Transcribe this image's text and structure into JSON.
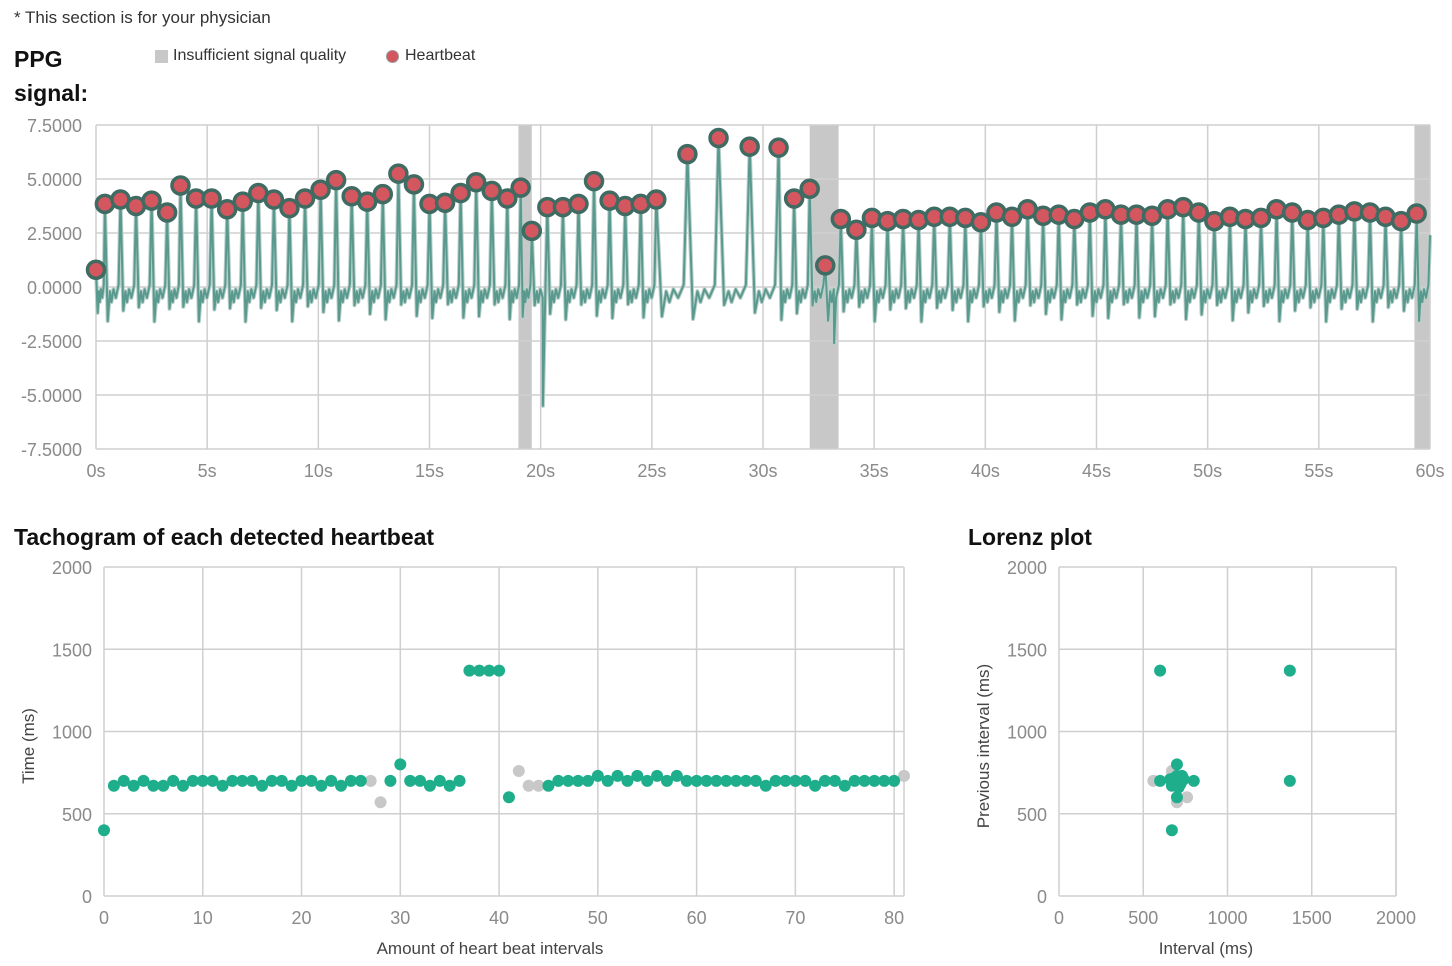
{
  "note": "* This section is for your physician",
  "ppg": {
    "title_line1": "PPG",
    "title_line2": "signal:",
    "legend_insufficient": "Insufficient signal quality",
    "legend_heartbeat": "Heartbeat"
  },
  "tachogram": {
    "title": "Tachogram of each detected heartbeat"
  },
  "lorenz": {
    "title": "Lorenz plot"
  },
  "colors": {
    "signal": "#5a9a8e",
    "beat": "#d4565e",
    "point": "#1fae8c",
    "excluded": "#c8c8c8",
    "grid": "#cfcfcf"
  },
  "chart_data": [
    {
      "type": "line",
      "name": "ppg-signal",
      "xlim": [
        0,
        60
      ],
      "ylim": [
        -7.5,
        7.5
      ],
      "x_ticks": [
        0,
        5,
        10,
        15,
        20,
        25,
        30,
        35,
        40,
        45,
        50,
        55,
        60
      ],
      "x_tick_labels": [
        "0s",
        "5s",
        "10s",
        "15s",
        "20s",
        "25s",
        "30s",
        "35s",
        "40s",
        "45s",
        "50s",
        "55s",
        "60s"
      ],
      "y_ticks": [
        7.5,
        5,
        2.5,
        0,
        -2.5,
        -5,
        -7.5
      ],
      "y_tick_labels": [
        "7.5000",
        "5.0000",
        "2.5000",
        "0.0000",
        "-2.5000",
        "-5.0000",
        "-7.5000"
      ],
      "insufficient_regions": [
        [
          19.0,
          19.6
        ],
        [
          32.1,
          33.4
        ],
        [
          59.3,
          60.0
        ]
      ],
      "dips": [
        [
          20.1,
          -5.5
        ],
        [
          33.2,
          -2.6
        ]
      ],
      "heartbeats": [
        [
          0.0,
          0.8
        ],
        [
          0.4,
          3.85
        ],
        [
          1.1,
          4.05
        ],
        [
          1.8,
          3.75
        ],
        [
          2.5,
          4.0
        ],
        [
          3.2,
          3.45
        ],
        [
          3.8,
          4.7
        ],
        [
          4.5,
          4.1
        ],
        [
          5.2,
          4.1
        ],
        [
          5.9,
          3.6
        ],
        [
          6.6,
          3.95
        ],
        [
          7.3,
          4.35
        ],
        [
          8.0,
          4.05
        ],
        [
          8.7,
          3.65
        ],
        [
          9.4,
          4.1
        ],
        [
          10.1,
          4.5
        ],
        [
          10.8,
          4.95
        ],
        [
          11.5,
          4.2
        ],
        [
          12.2,
          3.95
        ],
        [
          12.9,
          4.3
        ],
        [
          13.6,
          5.25
        ],
        [
          14.3,
          4.75
        ],
        [
          15.0,
          3.85
        ],
        [
          15.7,
          3.9
        ],
        [
          16.4,
          4.35
        ],
        [
          17.1,
          4.85
        ],
        [
          17.8,
          4.45
        ],
        [
          18.5,
          4.1
        ],
        [
          19.1,
          4.6
        ],
        [
          19.6,
          2.6
        ],
        [
          20.3,
          3.7
        ],
        [
          21.0,
          3.7
        ],
        [
          21.7,
          3.85
        ],
        [
          22.4,
          4.9
        ],
        [
          23.1,
          4.0
        ],
        [
          23.8,
          3.75
        ],
        [
          24.5,
          3.85
        ],
        [
          25.2,
          4.05
        ],
        [
          26.6,
          6.15
        ],
        [
          28.0,
          6.9
        ],
        [
          29.4,
          6.5
        ],
        [
          30.7,
          6.45
        ],
        [
          31.4,
          4.1
        ],
        [
          32.1,
          4.55
        ],
        [
          32.8,
          1.0
        ],
        [
          33.5,
          3.15
        ],
        [
          34.2,
          2.65
        ],
        [
          34.9,
          3.2
        ],
        [
          35.6,
          3.05
        ],
        [
          36.3,
          3.15
        ],
        [
          37.0,
          3.1
        ],
        [
          37.7,
          3.25
        ],
        [
          38.4,
          3.25
        ],
        [
          39.1,
          3.2
        ],
        [
          39.8,
          3.0
        ],
        [
          40.5,
          3.45
        ],
        [
          41.2,
          3.25
        ],
        [
          41.9,
          3.6
        ],
        [
          42.6,
          3.3
        ],
        [
          43.3,
          3.35
        ],
        [
          44.0,
          3.15
        ],
        [
          44.7,
          3.45
        ],
        [
          45.4,
          3.6
        ],
        [
          46.1,
          3.35
        ],
        [
          46.8,
          3.35
        ],
        [
          47.5,
          3.3
        ],
        [
          48.2,
          3.6
        ],
        [
          48.9,
          3.7
        ],
        [
          49.6,
          3.45
        ],
        [
          50.3,
          3.05
        ],
        [
          51.0,
          3.25
        ],
        [
          51.7,
          3.15
        ],
        [
          52.4,
          3.2
        ],
        [
          53.1,
          3.6
        ],
        [
          53.8,
          3.45
        ],
        [
          54.5,
          3.1
        ],
        [
          55.2,
          3.2
        ],
        [
          55.9,
          3.35
        ],
        [
          56.6,
          3.5
        ],
        [
          57.3,
          3.45
        ],
        [
          58.0,
          3.25
        ],
        [
          58.7,
          3.05
        ],
        [
          59.4,
          3.4
        ]
      ]
    },
    {
      "type": "scatter",
      "name": "tachogram",
      "title": "Tachogram of each detected heartbeat",
      "xlabel": "Amount of heart beat intervals",
      "ylabel": "Time (ms)",
      "xlim": [
        0,
        81
      ],
      "ylim": [
        0,
        2000
      ],
      "x_ticks": [
        0,
        10,
        20,
        30,
        40,
        50,
        60,
        70,
        80
      ],
      "y_ticks": [
        0,
        500,
        1000,
        1500,
        2000
      ],
      "points": [
        [
          0,
          400
        ],
        [
          1,
          670
        ],
        [
          2,
          700
        ],
        [
          3,
          670
        ],
        [
          4,
          700
        ],
        [
          5,
          670
        ],
        [
          6,
          670
        ],
        [
          7,
          700
        ],
        [
          8,
          670
        ],
        [
          9,
          700
        ],
        [
          10,
          700
        ],
        [
          11,
          700
        ],
        [
          12,
          670
        ],
        [
          13,
          700
        ],
        [
          14,
          700
        ],
        [
          15,
          700
        ],
        [
          16,
          670
        ],
        [
          17,
          700
        ],
        [
          18,
          700
        ],
        [
          19,
          670
        ],
        [
          20,
          700
        ],
        [
          21,
          700
        ],
        [
          22,
          670
        ],
        [
          23,
          700
        ],
        [
          24,
          670
        ],
        [
          25,
          700
        ],
        [
          26,
          700
        ],
        [
          29,
          700
        ],
        [
          30,
          800
        ],
        [
          31,
          700
        ],
        [
          32,
          700
        ],
        [
          33,
          670
        ],
        [
          34,
          700
        ],
        [
          35,
          670
        ],
        [
          36,
          700
        ],
        [
          37,
          1370
        ],
        [
          38,
          1370
        ],
        [
          39,
          1370
        ],
        [
          40,
          1370
        ],
        [
          41,
          600
        ],
        [
          45,
          670
        ],
        [
          46,
          700
        ],
        [
          47,
          700
        ],
        [
          48,
          700
        ],
        [
          49,
          700
        ],
        [
          50,
          730
        ],
        [
          51,
          700
        ],
        [
          52,
          730
        ],
        [
          53,
          700
        ],
        [
          54,
          730
        ],
        [
          55,
          700
        ],
        [
          56,
          730
        ],
        [
          57,
          700
        ],
        [
          58,
          730
        ],
        [
          59,
          700
        ],
        [
          60,
          700
        ],
        [
          61,
          700
        ],
        [
          62,
          700
        ],
        [
          63,
          700
        ],
        [
          64,
          700
        ],
        [
          65,
          700
        ],
        [
          66,
          700
        ],
        [
          67,
          670
        ],
        [
          68,
          700
        ],
        [
          69,
          700
        ],
        [
          70,
          700
        ],
        [
          71,
          700
        ],
        [
          72,
          670
        ],
        [
          73,
          700
        ],
        [
          74,
          700
        ],
        [
          75,
          670
        ],
        [
          76,
          700
        ],
        [
          77,
          700
        ],
        [
          78,
          700
        ],
        [
          79,
          700
        ],
        [
          80,
          700
        ]
      ],
      "excluded_points": [
        [
          27,
          700
        ],
        [
          28,
          570
        ],
        [
          42,
          760
        ],
        [
          43,
          670
        ],
        [
          44,
          670
        ],
        [
          81,
          730
        ]
      ]
    },
    {
      "type": "scatter",
      "name": "lorenz",
      "title": "Lorenz plot",
      "xlabel": "Interval (ms)",
      "ylabel": "Previous interval (ms)",
      "xlim": [
        0,
        2000
      ],
      "ylim": [
        0,
        2000
      ],
      "x_ticks": [
        0,
        500,
        1000,
        1500,
        2000
      ],
      "y_ticks": [
        0,
        500,
        1000,
        1500,
        2000
      ],
      "points": [
        [
          600,
          1370
        ],
        [
          1370,
          1370
        ],
        [
          1370,
          700
        ],
        [
          670,
          400
        ],
        [
          700,
          800
        ],
        [
          800,
          700
        ],
        [
          700,
          670
        ],
        [
          670,
          700
        ],
        [
          700,
          700
        ],
        [
          730,
          700
        ],
        [
          700,
          730
        ],
        [
          730,
          730
        ],
        [
          670,
          670
        ],
        [
          600,
          700
        ],
        [
          700,
          600
        ],
        [
          680,
          690
        ],
        [
          720,
          680
        ],
        [
          690,
          720
        ],
        [
          740,
          710
        ],
        [
          660,
          710
        ],
        [
          710,
          660
        ]
      ],
      "excluded_points": [
        [
          560,
          700
        ],
        [
          700,
          570
        ],
        [
          760,
          600
        ],
        [
          670,
          760
        ],
        [
          700,
          670
        ],
        [
          730,
          700
        ]
      ]
    }
  ]
}
